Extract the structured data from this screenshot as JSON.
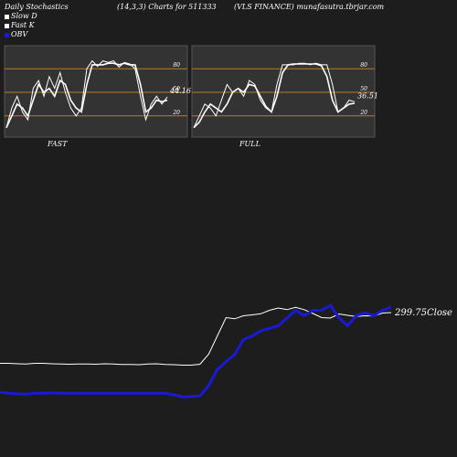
{
  "header": {
    "left": "Daily Stochastics",
    "center": "(14,3,3) Charts for 511333",
    "right": "(VLS FINANCE) munafasutra.tbrjar.com"
  },
  "legend": {
    "slow_d": "Slow  D",
    "fast_k": "Fast K",
    "obv": "OBV"
  },
  "colors": {
    "background": "#1d1d1d",
    "panel": "#333333",
    "grid": "#b87d2a",
    "line": "#ffffff",
    "obv": "#1a1ad6"
  },
  "chart_data": [
    {
      "type": "line",
      "title": "FAST",
      "ylim": [
        0,
        100
      ],
      "levels": [
        20,
        50,
        80
      ],
      "level_labels": [
        "20",
        "50",
        "80"
      ],
      "last_value_label": "44.16",
      "series": [
        {
          "name": "Slow  D",
          "values": [
            5,
            20,
            35,
            30,
            20,
            40,
            60,
            50,
            55,
            45,
            65,
            60,
            40,
            30,
            25,
            60,
            85,
            85,
            85,
            87,
            87,
            85,
            87,
            85,
            85,
            60,
            25,
            30,
            40,
            38,
            40
          ]
        },
        {
          "name": "Fast K",
          "values": [
            5,
            30,
            45,
            25,
            15,
            55,
            65,
            45,
            70,
            55,
            75,
            50,
            30,
            20,
            30,
            80,
            90,
            83,
            90,
            88,
            90,
            82,
            88,
            86,
            80,
            45,
            15,
            35,
            45,
            35,
            44
          ]
        }
      ]
    },
    {
      "type": "line",
      "title": "FULL",
      "ylim": [
        0,
        100
      ],
      "levels": [
        20,
        50,
        80
      ],
      "level_labels": [
        "20",
        "50",
        "80"
      ],
      "last_value_label": "36.51",
      "series": [
        {
          "name": "Slow  D",
          "values": [
            5,
            12,
            25,
            35,
            30,
            25,
            35,
            50,
            55,
            50,
            60,
            58,
            45,
            32,
            25,
            45,
            75,
            85,
            86,
            86,
            86,
            86,
            86,
            84,
            70,
            40,
            25,
            30,
            35,
            36
          ]
        },
        {
          "name": "Fast K",
          "values": [
            5,
            20,
            35,
            30,
            20,
            40,
            60,
            50,
            55,
            45,
            65,
            60,
            40,
            30,
            25,
            60,
            85,
            85,
            85,
            87,
            87,
            85,
            87,
            85,
            85,
            60,
            25,
            30,
            40,
            38
          ]
        }
      ]
    },
    {
      "type": "line",
      "title": "",
      "last_value_label": "299.75",
      "series": [
        {
          "name": "Close",
          "values": [
            30,
            30,
            28,
            27,
            30,
            30,
            28,
            27,
            26,
            27,
            27,
            26,
            28,
            27,
            25,
            25,
            24,
            27,
            28,
            25,
            24,
            22,
            22,
            26,
            70,
            150,
            230,
            225,
            238,
            242,
            247,
            262,
            272,
            265,
            275,
            265,
            248,
            230,
            228,
            246,
            240,
            235,
            238,
            237,
            250,
            252
          ]
        },
        {
          "name": "OBV",
          "values": [
            5,
            3,
            2,
            1,
            3,
            3,
            4,
            3,
            3,
            3,
            3,
            3,
            3,
            3,
            3,
            3,
            3,
            3,
            3,
            3,
            0,
            -4,
            -3,
            -2,
            18,
            50,
            65,
            79,
            108,
            115,
            125,
            130,
            135,
            150,
            165,
            155,
            165,
            165,
            175,
            150,
            135,
            155,
            160,
            155,
            165,
            171
          ]
        }
      ]
    }
  ]
}
